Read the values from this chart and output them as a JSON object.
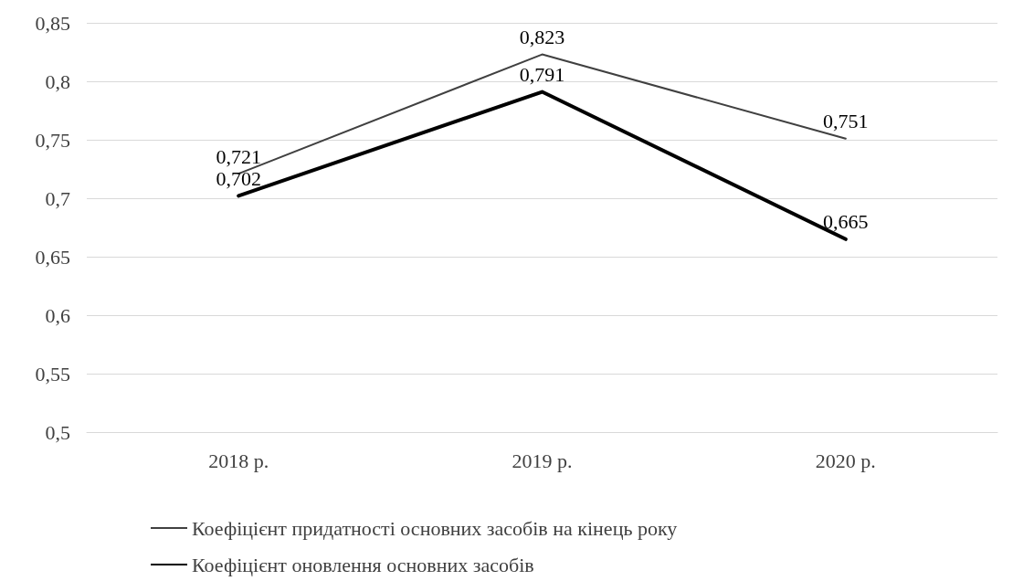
{
  "chart_data": {
    "type": "line",
    "categories": [
      "2018 р.",
      "2019 р.",
      "2020 р."
    ],
    "series": [
      {
        "name": "Коефіцієнт придатності основних засобів на кінець року",
        "color": "#404040",
        "values": [
          0.721,
          0.823,
          0.751
        ],
        "value_labels": [
          "0,721",
          "0,823",
          "0,751"
        ]
      },
      {
        "name": "Коефіцієнт оновлення основних засобів",
        "color": "#000000",
        "values": [
          0.702,
          0.791,
          0.665
        ],
        "value_labels": [
          "0,702",
          "0,791",
          "0,665"
        ]
      }
    ],
    "ylim": [
      0.5,
      0.85
    ],
    "yticks": [
      {
        "value": 0.5,
        "label": "0,5"
      },
      {
        "value": 0.55,
        "label": "0,55"
      },
      {
        "value": 0.6,
        "label": "0,6"
      },
      {
        "value": 0.65,
        "label": "0,65"
      },
      {
        "value": 0.7,
        "label": "0,7"
      },
      {
        "value": 0.75,
        "label": "0,75"
      },
      {
        "value": 0.8,
        "label": "0,8"
      },
      {
        "value": 0.85,
        "label": "0,85"
      }
    ],
    "grid": "y",
    "legend": "bottom",
    "marker": "none",
    "line_style": "solid"
  }
}
